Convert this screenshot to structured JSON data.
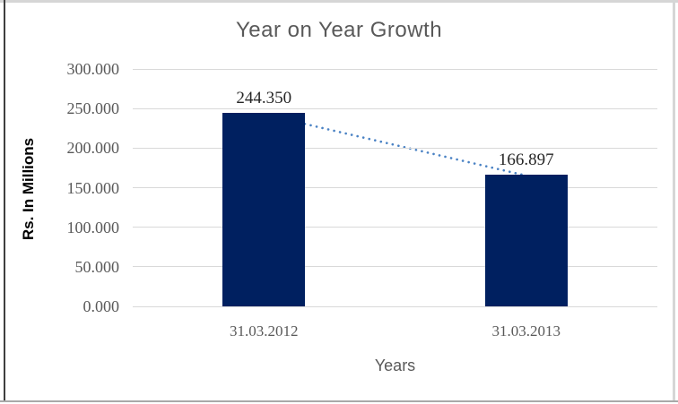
{
  "chart_data": {
    "type": "bar",
    "title": "Year on Year Growth",
    "xlabel": "Years",
    "ylabel": "Rs. In Millions",
    "categories": [
      "31.03.2012",
      "31.03.2013"
    ],
    "values": [
      244.35,
      166.897
    ],
    "value_labels": [
      "244.350",
      "166.897"
    ],
    "yticks": [
      "300.000",
      "250.000",
      "200.000",
      "150.000",
      "100.000",
      "50.000",
      "0.000"
    ],
    "ylim": [
      0,
      300
    ],
    "grid": true,
    "legend": false,
    "trendline": {
      "type": "linear",
      "style": "dotted"
    },
    "colors": {
      "bar": "#002060",
      "trendline": "#4a82c4",
      "gridline": "#d9d9d9",
      "tick_text": "#595959",
      "data_label_text": "#262626",
      "title_text": "#595959",
      "y_axis_title_text": "#000000"
    }
  }
}
